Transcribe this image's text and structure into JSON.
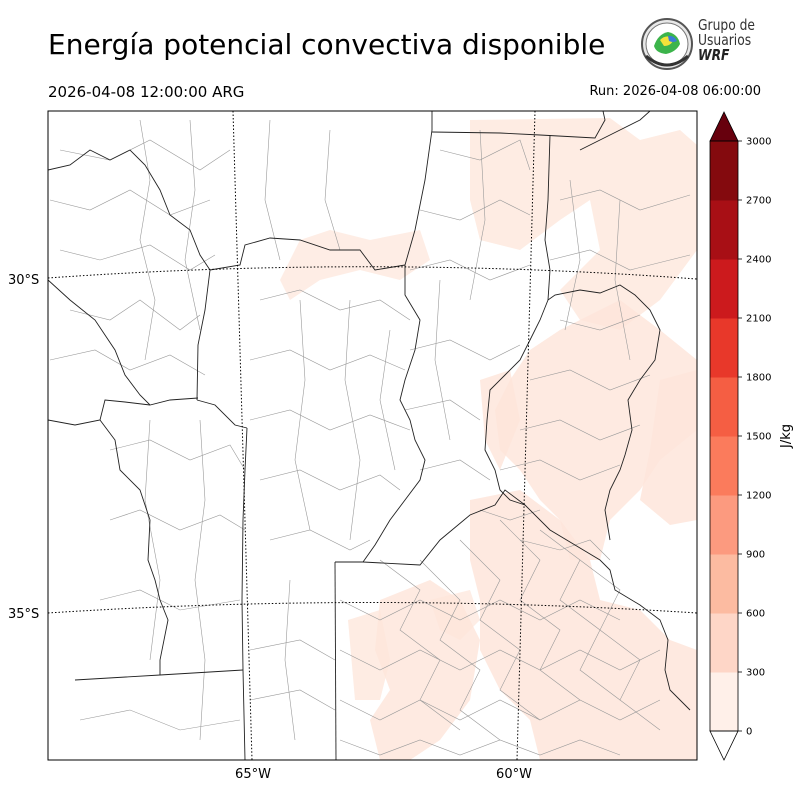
{
  "title": "Energía potencial convectiva disponible",
  "valid_time": "2026-04-08 12:00:00 ARG",
  "run_label": "Run: 2026-04-08 06:00:00",
  "logo": {
    "line1": "Grupo de",
    "line2": "Usuarios",
    "line3": "WRF"
  },
  "map": {
    "lat_labels": [
      "30°S",
      "35°S"
    ],
    "lon_labels": [
      "65°W",
      "60°W"
    ]
  },
  "colorbar": {
    "unit": "J/kg",
    "ticks": [
      "0",
      "300",
      "600",
      "900",
      "1200",
      "1500",
      "1800",
      "2100",
      "2400",
      "2700",
      "3000"
    ],
    "colors": [
      "#fff0e9",
      "#fed6c7",
      "#fcbba1",
      "#fc9a7f",
      "#fb7b5c",
      "#f55e43",
      "#e8382a",
      "#cc1a1d",
      "#a80f15",
      "#840a0e"
    ],
    "over_color": "#67000d"
  }
}
